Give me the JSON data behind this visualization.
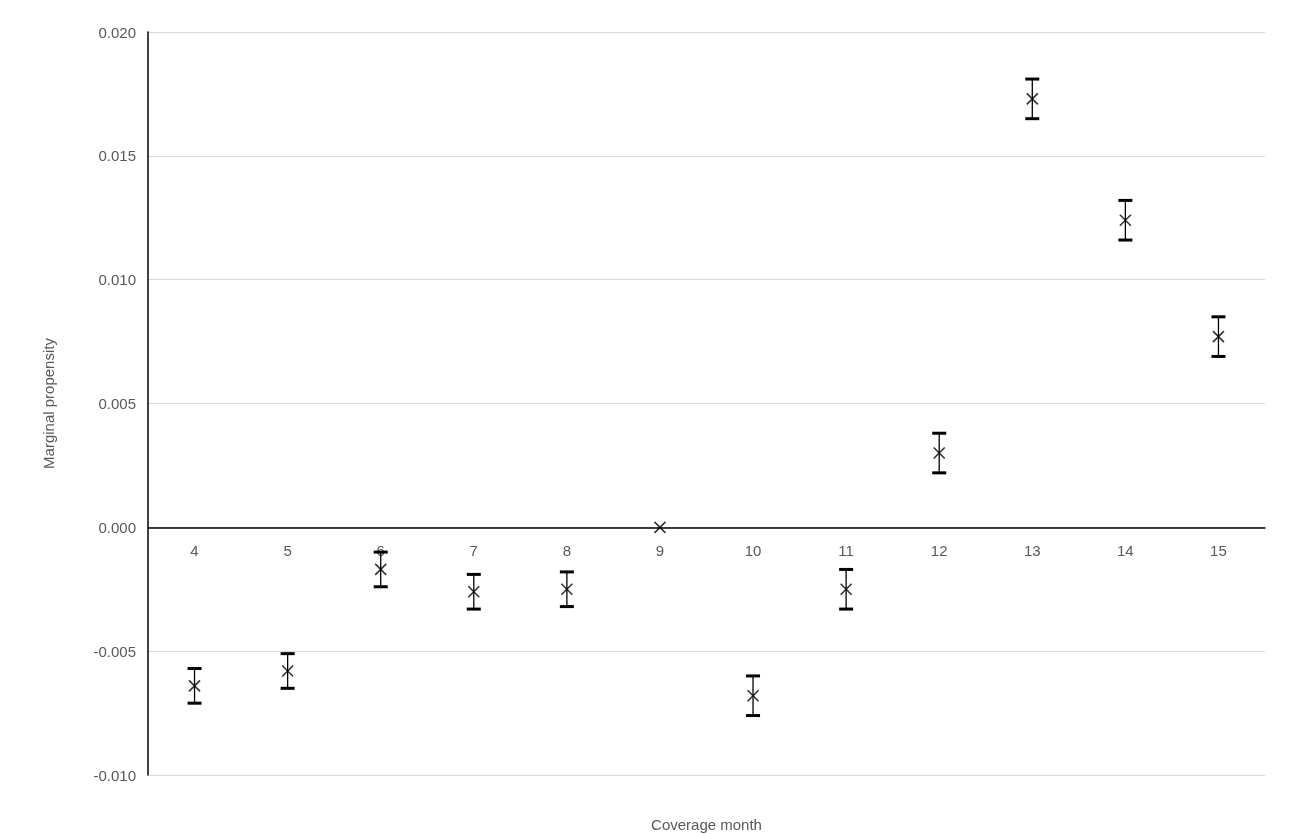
{
  "chart_data": {
    "type": "scatter",
    "xlabel": "Coverage month",
    "ylabel": "Marginal propensity",
    "categories": [
      "4",
      "5",
      "6",
      "7",
      "8",
      "9",
      "10",
      "11",
      "12",
      "13",
      "14",
      "15"
    ],
    "series": [
      {
        "color": "#000000",
        "values": [
          -0.0064,
          -0.0058,
          -0.0017,
          -0.0026,
          -0.0025,
          0,
          -0.0068,
          -0.0025,
          0.003,
          0.0173,
          0.0124,
          0.0077
        ],
        "errors": [
          0.0007,
          0.0007,
          0.0007,
          0.0007,
          0.0007,
          null,
          0.0008,
          0.0008,
          0.0008,
          0.0008,
          0.0008,
          0.0008
        ]
      }
    ],
    "marker": "cross",
    "grid": "y",
    "ylim": [
      -0.01,
      0.02
    ],
    "yticks": [
      {
        "value": -0.01,
        "label": "-0.010"
      },
      {
        "value": -0.005,
        "label": "-0.005"
      },
      {
        "value": 0,
        "label": "0.000"
      },
      {
        "value": 0.005,
        "label": "0.005"
      },
      {
        "value": 0.01,
        "label": "0.010"
      },
      {
        "value": 0.015,
        "label": "0.015"
      },
      {
        "value": 0.02,
        "label": "0.020"
      }
    ]
  }
}
